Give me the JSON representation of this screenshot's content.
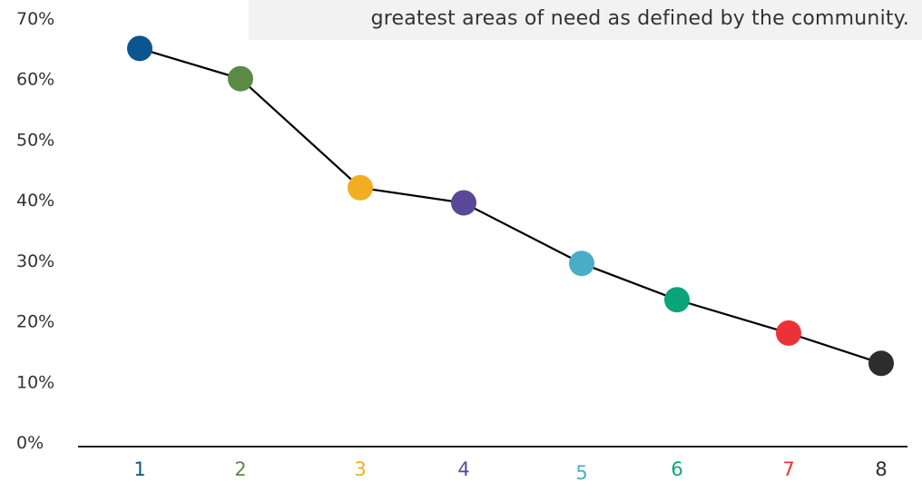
{
  "header": {
    "text": "greatest areas of need as defined by the community."
  },
  "chart_data": {
    "type": "line",
    "title": "",
    "xlabel": "",
    "ylabel": "",
    "categories": [
      "1",
      "2",
      "3",
      "4",
      "5",
      "6",
      "7",
      "8"
    ],
    "values": [
      65,
      60,
      42,
      39.5,
      29.5,
      23.5,
      18,
      13
    ],
    "ylim": [
      0,
      70
    ],
    "y_ticks": [
      "0%",
      "10%",
      "20%",
      "30%",
      "40%",
      "50%",
      "60%",
      "70%"
    ],
    "point_colors": [
      "#0b5590",
      "#5b8a45",
      "#f2ad22",
      "#5b4797",
      "#48adc5",
      "#0aa37a",
      "#ed3237",
      "#2d2d2d"
    ],
    "tick_label_colors": [
      "#0b5590",
      "#5b8a45",
      "#f2ad22",
      "#5b4797",
      "#48adc5",
      "#0aa37a",
      "#ed3237",
      "#2d2d2d"
    ],
    "line_color": "#000000",
    "grid": false,
    "legend": "none"
  }
}
